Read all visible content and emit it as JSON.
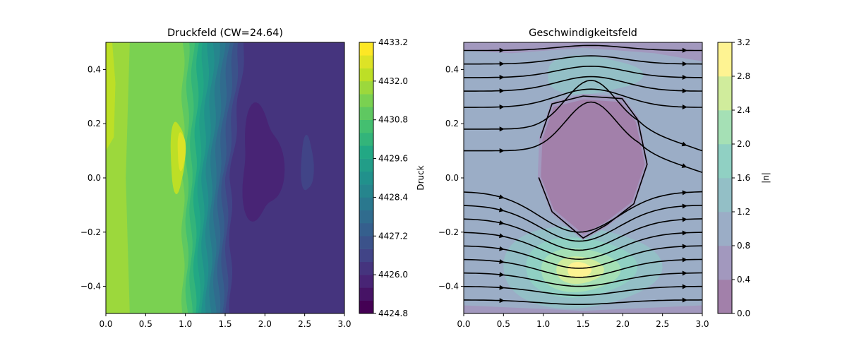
{
  "chart_data": [
    {
      "type": "contour",
      "title": "Druckfeld (CW=24.64)",
      "colormap": "viridis",
      "opacity": 1,
      "xlim": [
        0,
        3
      ],
      "xticks": [
        {
          "value": 0,
          "label": "0.0"
        },
        0.5,
        {
          "value": 1,
          "label": "1.0"
        },
        1.5,
        {
          "value": 2,
          "label": "2.0"
        },
        2.5,
        {
          "value": 3,
          "label": "3.0"
        }
      ],
      "ylim": [
        -0.5,
        0.5
      ],
      "yticks": [
        {
          "value": -0.4,
          "label": "−0.4"
        },
        {
          "value": -0.2,
          "label": "−0.2"
        },
        {
          "value": 0,
          "label": "0.0"
        },
        0.2,
        0.4
      ],
      "colorbar": {
        "label": "Druck",
        "lim": [
          4424.8,
          4433.2
        ],
        "levels": [
          4424.8,
          4425.2,
          4425.6,
          4426.0,
          4426.4,
          4426.8,
          4427.2,
          4427.6,
          4428.0,
          4428.4,
          4428.8,
          4429.2,
          4429.6,
          4430.0,
          4430.4,
          4430.8,
          4431.2,
          4431.6,
          4432.0,
          4432.4,
          4432.8,
          4433.2
        ],
        "ticks": [
          4424.8,
          {
            "value": 4426,
            "label": "4426.0"
          },
          4427.2,
          4428.4,
          4429.6,
          4430.8,
          {
            "value": 4432,
            "label": "4432.0"
          },
          4433.2
        ]
      },
      "streamlines": false
    },
    {
      "type": "contour",
      "title": "Geschwindigkeitsfeld",
      "colormap": "viridis",
      "opacity": 0.5,
      "xlim": [
        0,
        3
      ],
      "xticks": [
        {
          "value": 0,
          "label": "0.0"
        },
        0.5,
        {
          "value": 1,
          "label": "1.0"
        },
        1.5,
        {
          "value": 2,
          "label": "2.0"
        },
        2.5,
        {
          "value": 3,
          "label": "3.0"
        }
      ],
      "ylim": [
        -0.5,
        0.5
      ],
      "yticks": [
        {
          "value": -0.4,
          "label": "−0.4"
        },
        {
          "value": -0.2,
          "label": "−0.2"
        },
        {
          "value": 0,
          "label": "0.0"
        },
        0.2,
        0.4
      ],
      "colorbar": {
        "label": "|u|",
        "lim": [
          0,
          3.2
        ],
        "levels": [
          0,
          0.4,
          0.8,
          1.2,
          1.6,
          2.0,
          2.4,
          2.8,
          3.2
        ],
        "ticks": [
          {
            "value": 0,
            "label": "0.0"
          },
          0.4,
          0.8,
          1.2,
          1.6,
          {
            "value": 2,
            "label": "2.0"
          },
          2.4,
          2.8,
          3.2
        ]
      },
      "streamlines": true
    }
  ]
}
